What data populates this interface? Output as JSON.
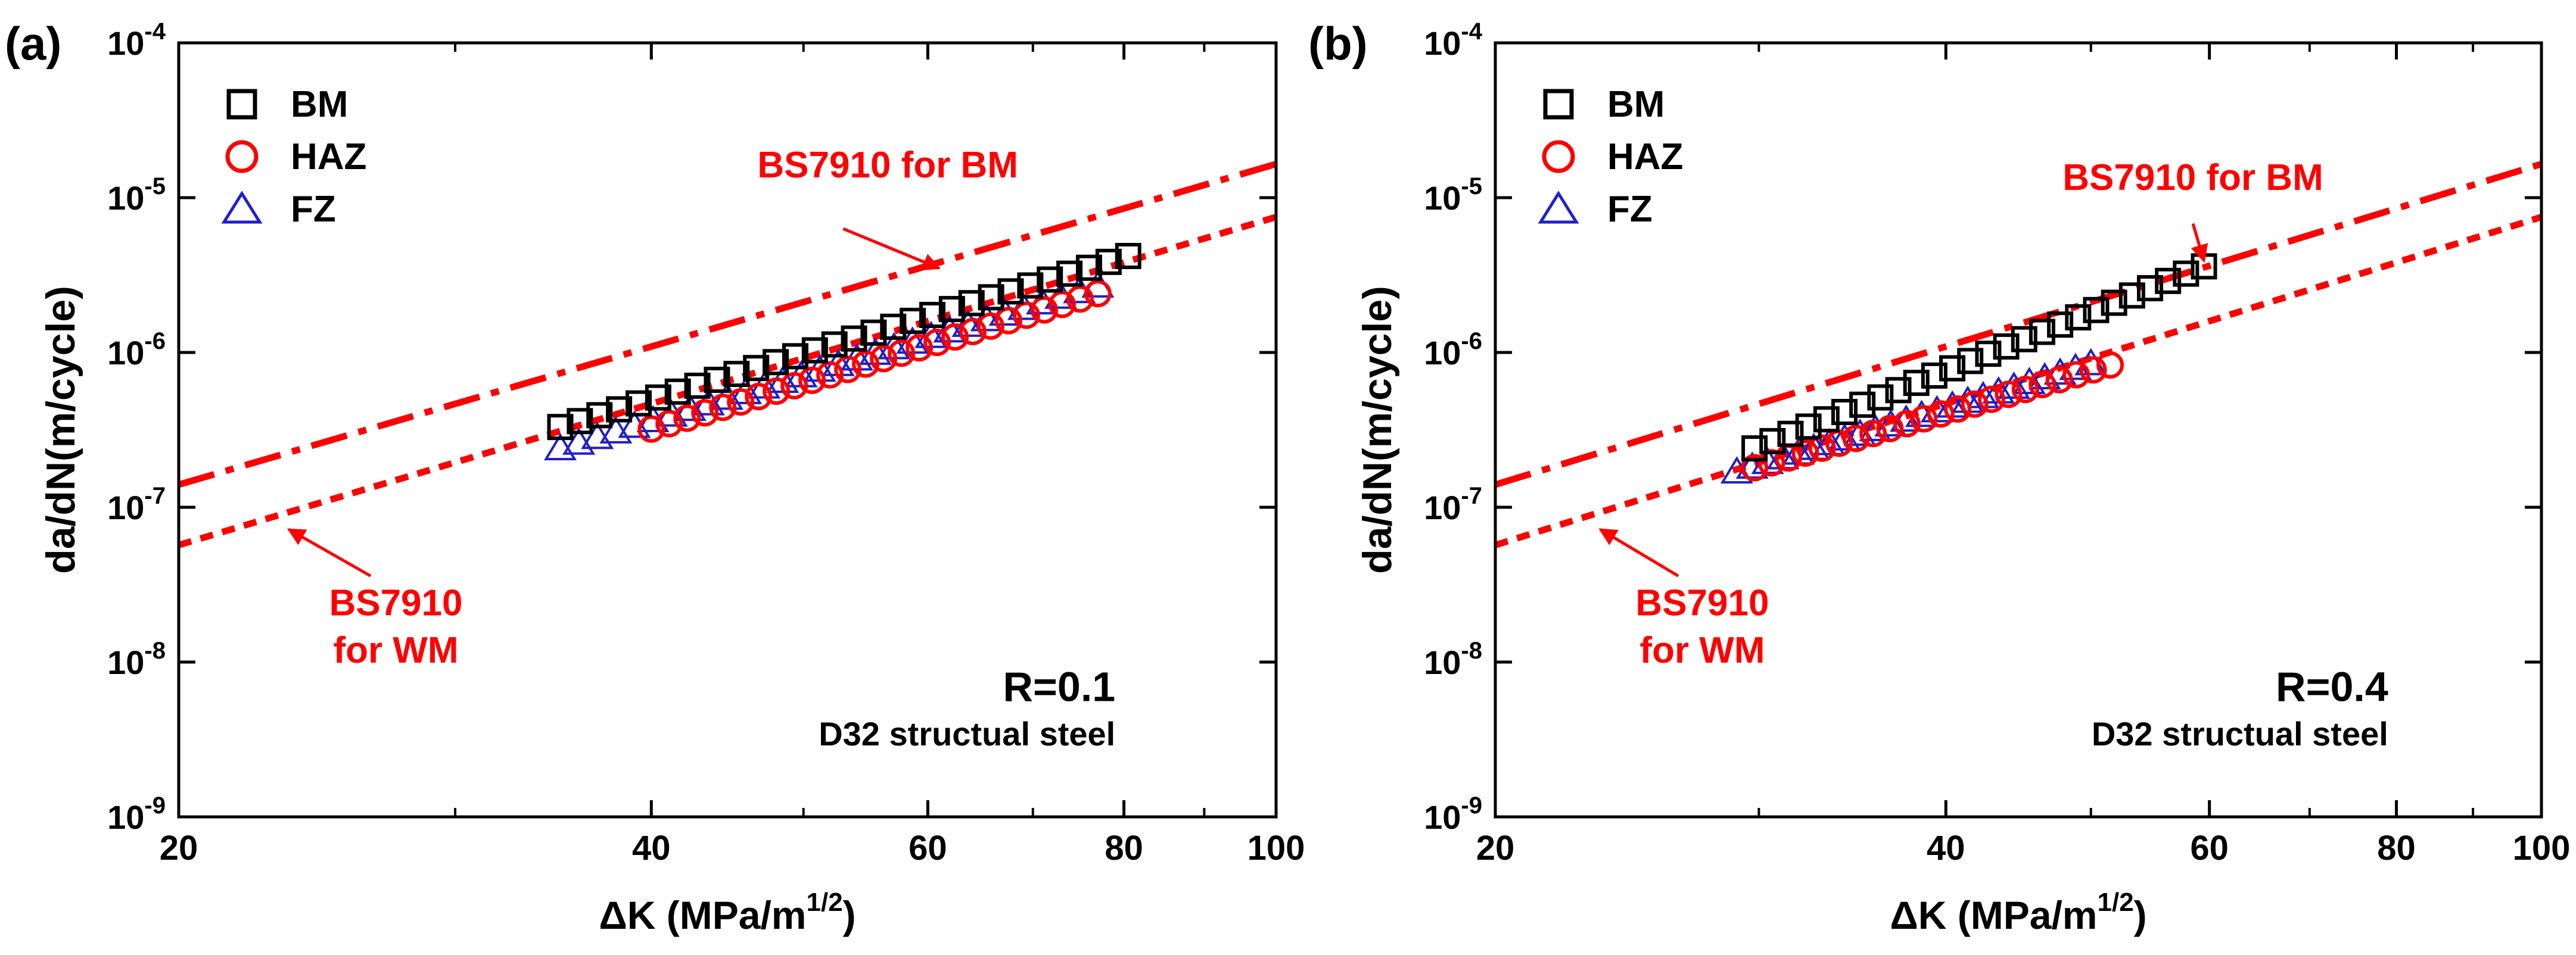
{
  "chart_data": [
    {
      "panel_label": "(a)",
      "type": "scatter",
      "title": "",
      "xlabel": "ΔK (MPa/m",
      "xlabel_sup": "1/2",
      "xlabel_close": ")",
      "ylabel": "da/dN(m/cycle)",
      "xscale": "log",
      "yscale": "log",
      "xlim": [
        20,
        100
      ],
      "ylim": [
        1e-09,
        0.0001
      ],
      "xticks": [
        {
          "value": 20,
          "label": "20"
        },
        {
          "value": 40,
          "label": "40"
        },
        {
          "value": 60,
          "label": "60"
        },
        {
          "value": 80,
          "label": "80"
        },
        {
          "value": 100,
          "label": "100"
        }
      ],
      "yticks": [
        {
          "value": 1e-09,
          "base": "10",
          "exp": "-9"
        },
        {
          "value": 1e-08,
          "base": "10",
          "exp": "-8"
        },
        {
          "value": 1e-07,
          "base": "10",
          "exp": "-7"
        },
        {
          "value": 1e-06,
          "base": "10",
          "exp": "-6"
        },
        {
          "value": 1e-05,
          "base": "10",
          "exp": "-5"
        },
        {
          "value": 0.0001,
          "base": "10",
          "exp": "-4"
        }
      ],
      "legend": {
        "placement": "top-left",
        "items": [
          {
            "name": "BM",
            "marker": "square",
            "color": "#000000"
          },
          {
            "name": "HAZ",
            "marker": "circle",
            "color": "#ff0000"
          },
          {
            "name": "FZ",
            "marker": "triangle",
            "color": "#1f1fcc"
          }
        ]
      },
      "series": [
        {
          "name": "BM",
          "marker": "square",
          "color": "#000000",
          "start": [
            35.0,
            3.3e-07
          ],
          "end": [
            80.5,
            4.2e-06
          ],
          "count": 30
        },
        {
          "name": "HAZ",
          "marker": "circle",
          "color": "#ff0000",
          "start": [
            40.0,
            3.2e-07
          ],
          "end": [
            77.0,
            2.4e-06
          ],
          "count": 26
        },
        {
          "name": "FZ",
          "marker": "triangle",
          "color": "#1f1fcc",
          "start": [
            35.0,
            2.4e-07
          ],
          "end": [
            77.0,
            2.7e-06
          ],
          "count": 30
        }
      ],
      "reference_lines": [
        {
          "name": "BS7910 for BM",
          "style": "dash-dot",
          "color": "#ff0000",
          "x": [
            20,
            100
          ],
          "y": [
            1.4e-07,
            1.65e-05
          ]
        },
        {
          "name": "BS7910 for WM",
          "style": "dotted",
          "color": "#ff0000",
          "x": [
            20,
            100
          ],
          "y": [
            5.7e-08,
            7.5e-06
          ]
        }
      ],
      "annotations": [
        {
          "lines": [
            "BS7910 for BM"
          ],
          "color": "#ff0000",
          "size": "medium",
          "anchor": "end",
          "at": [
            68.5,
            1.35e-05
          ],
          "arrow_from": [
            53.0,
            6.3e-06
          ],
          "arrow_to": [
            61.0,
            3.5e-06
          ]
        },
        {
          "lines": [
            "BS7910",
            "for WM"
          ],
          "color": "#ff0000",
          "size": "medium",
          "anchor": "middle",
          "at": [
            27.5,
            2e-08
          ],
          "arrow_from": [
            26.5,
            3.6e-08
          ],
          "arrow_to": [
            23.5,
            7.2e-08
          ]
        },
        {
          "lines": [
            "R=0.1"
          ],
          "color": "#000000",
          "size": "large",
          "anchor": "end",
          "at": [
            79.0,
            5.6e-09
          ]
        },
        {
          "lines": [
            "D32 structual steel"
          ],
          "color": "#000000",
          "size": "small",
          "anchor": "end",
          "at": [
            79.0,
            2.9e-09
          ]
        }
      ]
    },
    {
      "panel_label": "(b)",
      "type": "scatter",
      "title": "",
      "xlabel": "ΔK (MPa/m",
      "xlabel_sup": "1/2",
      "xlabel_close": ")",
      "ylabel": "da/dN(m/cycle)",
      "xscale": "log",
      "yscale": "log",
      "xlim": [
        20,
        100
      ],
      "ylim": [
        1e-09,
        0.0001
      ],
      "xticks": [
        {
          "value": 20,
          "label": "20"
        },
        {
          "value": 40,
          "label": "40"
        },
        {
          "value": 60,
          "label": "60"
        },
        {
          "value": 80,
          "label": "80"
        },
        {
          "value": 100,
          "label": "100"
        }
      ],
      "yticks": [
        {
          "value": 1e-09,
          "base": "10",
          "exp": "-9"
        },
        {
          "value": 1e-08,
          "base": "10",
          "exp": "-8"
        },
        {
          "value": 1e-07,
          "base": "10",
          "exp": "-7"
        },
        {
          "value": 1e-06,
          "base": "10",
          "exp": "-6"
        },
        {
          "value": 1e-05,
          "base": "10",
          "exp": "-5"
        },
        {
          "value": 0.0001,
          "base": "10",
          "exp": "-4"
        }
      ],
      "legend": {
        "placement": "top-left",
        "items": [
          {
            "name": "BM",
            "marker": "square",
            "color": "#000000"
          },
          {
            "name": "HAZ",
            "marker": "circle",
            "color": "#ff0000"
          },
          {
            "name": "FZ",
            "marker": "triangle",
            "color": "#1f1fcc"
          }
        ]
      },
      "series": [
        {
          "name": "BM",
          "marker": "square",
          "color": "#000000",
          "start": [
            29.8,
            2.4e-07
          ],
          "end": [
            59.5,
            3.6e-06
          ],
          "count": 26
        },
        {
          "name": "HAZ",
          "marker": "circle",
          "color": "#ff0000",
          "start": [
            29.8,
            1.8e-07
          ],
          "end": [
            51.5,
            8.3e-07
          ],
          "count": 22
        },
        {
          "name": "FZ",
          "marker": "triangle",
          "color": "#1f1fcc",
          "start": [
            29.0,
            1.7e-07
          ],
          "end": [
            50.0,
            8.5e-07
          ],
          "count": 24
        }
      ],
      "reference_lines": [
        {
          "name": "BS7910 for BM",
          "style": "dash-dot",
          "color": "#ff0000",
          "x": [
            20,
            100
          ],
          "y": [
            1.4e-07,
            1.65e-05
          ]
        },
        {
          "name": "BS7910 for WM",
          "style": "dotted",
          "color": "#ff0000",
          "x": [
            20,
            100
          ],
          "y": [
            5.7e-08,
            7.5e-06
          ]
        }
      ],
      "annotations": [
        {
          "lines": [
            "BS7910 for BM"
          ],
          "color": "#ff0000",
          "size": "medium",
          "anchor": "middle",
          "at": [
            58.5,
            1.12e-05
          ],
          "arrow_from": [
            58.5,
            6.8e-06
          ],
          "arrow_to": [
            59.5,
            3.9e-06
          ]
        },
        {
          "lines": [
            "BS7910",
            "for WM"
          ],
          "color": "#ff0000",
          "size": "medium",
          "anchor": "middle",
          "at": [
            27.5,
            2e-08
          ],
          "arrow_from": [
            26.5,
            3.6e-08
          ],
          "arrow_to": [
            23.5,
            7.2e-08
          ]
        },
        {
          "lines": [
            "R=0.4"
          ],
          "color": "#000000",
          "size": "large",
          "anchor": "end",
          "at": [
            79.0,
            5.6e-09
          ]
        },
        {
          "lines": [
            "D32 structual steel"
          ],
          "color": "#000000",
          "size": "small",
          "anchor": "end",
          "at": [
            79.0,
            2.9e-09
          ]
        }
      ]
    }
  ]
}
